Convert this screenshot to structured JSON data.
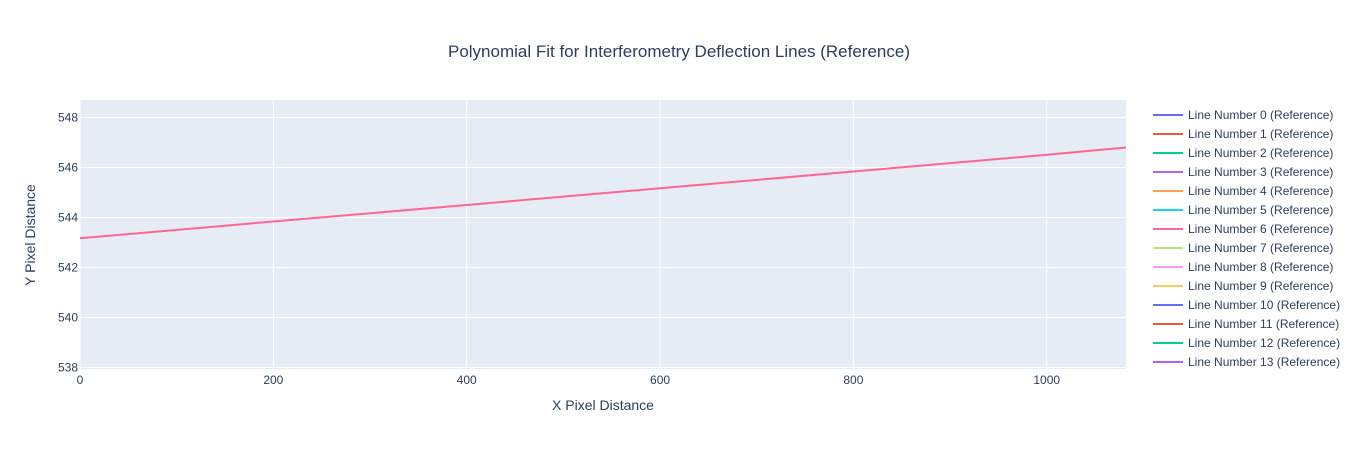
{
  "chart_data": {
    "type": "line",
    "title": "Polynomial Fit for Interferometry Deflection Lines (Reference)",
    "xlabel": "X Pixel Distance",
    "ylabel": "Y Pixel Distance",
    "xlim": [
      0,
      1082
    ],
    "ylim": [
      537.9,
      548.7
    ],
    "x_ticks": [
      0,
      200,
      400,
      600,
      800,
      1000
    ],
    "y_ticks": [
      538,
      540,
      542,
      544,
      546,
      548
    ],
    "grid": true,
    "legend_position": "right",
    "plot_background": "#e5ecf6",
    "visible_series_index": 6,
    "series": [
      {
        "name": "Line Number 0 (Reference)",
        "color": "#636efa",
        "x": [],
        "y": []
      },
      {
        "name": "Line Number 1 (Reference)",
        "color": "#ef553b",
        "x": [],
        "y": []
      },
      {
        "name": "Line Number 2 (Reference)",
        "color": "#00cc96",
        "x": [],
        "y": []
      },
      {
        "name": "Line Number 3 (Reference)",
        "color": "#ab63fa",
        "x": [],
        "y": []
      },
      {
        "name": "Line Number 4 (Reference)",
        "color": "#ffa15a",
        "x": [],
        "y": []
      },
      {
        "name": "Line Number 5 (Reference)",
        "color": "#19d3f3",
        "x": [],
        "y": []
      },
      {
        "name": "Line Number 6 (Reference)",
        "color": "#ff6692",
        "x": [
          0,
          200,
          400,
          600,
          800,
          1000,
          1082
        ],
        "y": [
          543.17,
          543.84,
          544.5,
          545.17,
          545.84,
          546.51,
          546.8
        ]
      },
      {
        "name": "Line Number 7 (Reference)",
        "color": "#b6e880",
        "x": [],
        "y": []
      },
      {
        "name": "Line Number 8 (Reference)",
        "color": "#ff97ff",
        "x": [],
        "y": []
      },
      {
        "name": "Line Number 9 (Reference)",
        "color": "#fecb52",
        "x": [],
        "y": []
      },
      {
        "name": "Line Number 10 (Reference)",
        "color": "#636efa",
        "x": [],
        "y": []
      },
      {
        "name": "Line Number 11 (Reference)",
        "color": "#ef553b",
        "x": [],
        "y": []
      },
      {
        "name": "Line Number 12 (Reference)",
        "color": "#00cc96",
        "x": [],
        "y": []
      },
      {
        "name": "Line Number 13 (Reference)",
        "color": "#ab63fa",
        "x": [],
        "y": []
      }
    ]
  }
}
